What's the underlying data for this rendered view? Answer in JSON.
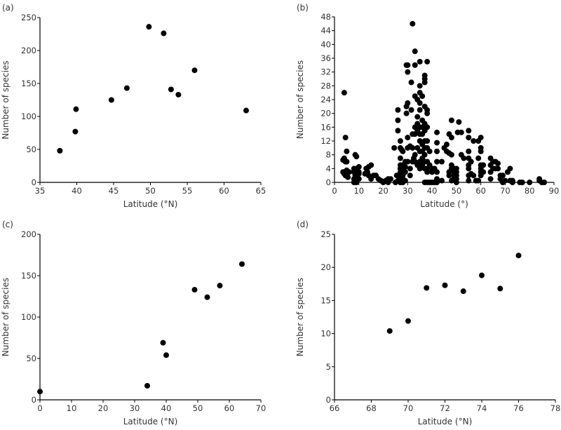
{
  "chart_data": [
    {
      "panel": "(a)",
      "type": "scatter",
      "xlabel": "Latitude (°N)",
      "ylabel": "Number of species",
      "xlim": [
        35,
        65
      ],
      "ylim": [
        0,
        250
      ],
      "xticks": [
        35,
        40,
        45,
        50,
        55,
        60,
        65
      ],
      "yticks": [
        0,
        50,
        100,
        150,
        200,
        250
      ],
      "grid": false,
      "points": [
        [
          37.7,
          48
        ],
        [
          39.8,
          77
        ],
        [
          39.9,
          111
        ],
        [
          44.7,
          125
        ],
        [
          46.8,
          143
        ],
        [
          49.8,
          236
        ],
        [
          51.8,
          226
        ],
        [
          52.8,
          141
        ],
        [
          53.8,
          133
        ],
        [
          56,
          170
        ],
        [
          63,
          109
        ]
      ]
    },
    {
      "panel": "(b)",
      "type": "scatter",
      "xlabel": "Latitude (°)",
      "ylabel": "Number of species",
      "xlim": [
        0,
        90
      ],
      "ylim": [
        0,
        48
      ],
      "xticks": [
        0,
        10,
        20,
        30,
        40,
        50,
        60,
        70,
        80,
        90
      ],
      "yticks": [
        0,
        4,
        8,
        12,
        16,
        20,
        24,
        28,
        32,
        36,
        40,
        44,
        48
      ],
      "grid": false,
      "points": [
        [
          4,
          26
        ],
        [
          4.5,
          13
        ],
        [
          5,
          9
        ],
        [
          4,
          7
        ],
        [
          3.5,
          6.5
        ],
        [
          4.5,
          6
        ],
        [
          5,
          6
        ],
        [
          3.5,
          3
        ],
        [
          4,
          3
        ],
        [
          5,
          3.5
        ],
        [
          5,
          2.5
        ],
        [
          4.5,
          2
        ],
        [
          5.5,
          1.5
        ],
        [
          4,
          2.5
        ],
        [
          6,
          3
        ],
        [
          8.5,
          8
        ],
        [
          9,
          7.5
        ],
        [
          8,
          4
        ],
        [
          9,
          4
        ],
        [
          10,
          4.5
        ],
        [
          8,
          3
        ],
        [
          9,
          3
        ],
        [
          10,
          3
        ],
        [
          8.5,
          2
        ],
        [
          9.5,
          2
        ],
        [
          10,
          2.5
        ],
        [
          8,
          1
        ],
        [
          9,
          0.5
        ],
        [
          10,
          1
        ],
        [
          8,
          0
        ],
        [
          9,
          0
        ],
        [
          13,
          4
        ],
        [
          14,
          4.5
        ],
        [
          15,
          5
        ],
        [
          12.5,
          2.5
        ],
        [
          13.5,
          3
        ],
        [
          14,
          2
        ],
        [
          15,
          1
        ],
        [
          16,
          2
        ],
        [
          17,
          2
        ],
        [
          15,
          1.5
        ],
        [
          18,
          1
        ],
        [
          19,
          0.5
        ],
        [
          20,
          0
        ],
        [
          21,
          0.5
        ],
        [
          22,
          1
        ],
        [
          23,
          1
        ],
        [
          20,
          0.2
        ],
        [
          22,
          0
        ],
        [
          24.5,
          10
        ],
        [
          26,
          21
        ],
        [
          26,
          18
        ],
        [
          26,
          15
        ],
        [
          25.5,
          2
        ],
        [
          25,
          0
        ],
        [
          26,
          0.5
        ],
        [
          27,
          10
        ],
        [
          27,
          12
        ],
        [
          27.5,
          9.5
        ],
        [
          28,
          9
        ],
        [
          27,
          7
        ],
        [
          27,
          5
        ],
        [
          28,
          5
        ],
        [
          27,
          4
        ],
        [
          28,
          4
        ],
        [
          27,
          3
        ],
        [
          28,
          3
        ],
        [
          27,
          2
        ],
        [
          28,
          2
        ],
        [
          27,
          1
        ],
        [
          28,
          1
        ],
        [
          27,
          0
        ],
        [
          28,
          0
        ],
        [
          29,
          0.5
        ],
        [
          29,
          3
        ],
        [
          29,
          4.5
        ],
        [
          29,
          6
        ],
        [
          30,
          6
        ],
        [
          29.5,
          22
        ],
        [
          30,
          23
        ],
        [
          29.5,
          20
        ],
        [
          29.5,
          34
        ],
        [
          30,
          32
        ],
        [
          30,
          34
        ],
        [
          30,
          13
        ],
        [
          30,
          10
        ],
        [
          31,
          10.5
        ],
        [
          31.5,
          29
        ],
        [
          31,
          2
        ],
        [
          31,
          4
        ],
        [
          32,
          46
        ],
        [
          31.5,
          21
        ],
        [
          32,
          14
        ],
        [
          32,
          10
        ],
        [
          32.5,
          7
        ],
        [
          32,
          6
        ],
        [
          33,
          38
        ],
        [
          33,
          34
        ],
        [
          33,
          25
        ],
        [
          33,
          16
        ],
        [
          33,
          14
        ],
        [
          33,
          8
        ],
        [
          33,
          6
        ],
        [
          34,
          19
        ],
        [
          34,
          17
        ],
        [
          34,
          15
        ],
        [
          34,
          10
        ],
        [
          34,
          5
        ],
        [
          34,
          24
        ],
        [
          35,
          35
        ],
        [
          35,
          28
        ],
        [
          35,
          26
        ],
        [
          35,
          23
        ],
        [
          35,
          21
        ],
        [
          35,
          16
        ],
        [
          35,
          14
        ],
        [
          35,
          12
        ],
        [
          35,
          9
        ],
        [
          35,
          6
        ],
        [
          35,
          4
        ],
        [
          36,
          25
        ],
        [
          36,
          18
        ],
        [
          36,
          16
        ],
        [
          36,
          14
        ],
        [
          36,
          11
        ],
        [
          36,
          9
        ],
        [
          36,
          7
        ],
        [
          36,
          5
        ],
        [
          37,
          31
        ],
        [
          37,
          30
        ],
        [
          37,
          29
        ],
        [
          37,
          22
        ],
        [
          37,
          17
        ],
        [
          37,
          15
        ],
        [
          37,
          12
        ],
        [
          37,
          10
        ],
        [
          37,
          8
        ],
        [
          37,
          6
        ],
        [
          37,
          4
        ],
        [
          37,
          0
        ],
        [
          38,
          35
        ],
        [
          38,
          21
        ],
        [
          38,
          20
        ],
        [
          38,
          16
        ],
        [
          38,
          12
        ],
        [
          38,
          10
        ],
        [
          38,
          6
        ],
        [
          38,
          4
        ],
        [
          38,
          3
        ],
        [
          38,
          0
        ],
        [
          39,
          0
        ],
        [
          39,
          9
        ],
        [
          39,
          5
        ],
        [
          40,
          4
        ],
        [
          40,
          3
        ],
        [
          40,
          0
        ],
        [
          41,
          4
        ],
        [
          41,
          0
        ],
        [
          42,
          14.5
        ],
        [
          42,
          11.5
        ],
        [
          42,
          9
        ],
        [
          42,
          6
        ],
        [
          42,
          3
        ],
        [
          42,
          1
        ],
        [
          42,
          0
        ],
        [
          44,
          6
        ],
        [
          44,
          0.5
        ],
        [
          45,
          10
        ],
        [
          46,
          11
        ],
        [
          46,
          9
        ],
        [
          47,
          8.5
        ],
        [
          47,
          14
        ],
        [
          48,
          13
        ],
        [
          48,
          18
        ],
        [
          48,
          8
        ],
        [
          47,
          2
        ],
        [
          47,
          3
        ],
        [
          48,
          4
        ],
        [
          48,
          5
        ],
        [
          49,
          4
        ],
        [
          49,
          3
        ],
        [
          49,
          2
        ],
        [
          49,
          1
        ],
        [
          48,
          0.5
        ],
        [
          50,
          4
        ],
        [
          50,
          3
        ],
        [
          50,
          2
        ],
        [
          50,
          0
        ],
        [
          50,
          1
        ],
        [
          51,
          17.5
        ],
        [
          50.5,
          14.5
        ],
        [
          52,
          14.5
        ],
        [
          52,
          8
        ],
        [
          53,
          7
        ],
        [
          55,
          15
        ],
        [
          55,
          13
        ],
        [
          55,
          9
        ],
        [
          55,
          7
        ],
        [
          55,
          5
        ],
        [
          55,
          4
        ],
        [
          55,
          2
        ],
        [
          55,
          0.5
        ],
        [
          56,
          2.5
        ],
        [
          56,
          6
        ],
        [
          57,
          12
        ],
        [
          57,
          2
        ],
        [
          58,
          0.5
        ],
        [
          59,
          0.5
        ],
        [
          59,
          7
        ],
        [
          59,
          12
        ],
        [
          60,
          13
        ],
        [
          60,
          10
        ],
        [
          60,
          9
        ],
        [
          60,
          5
        ],
        [
          60,
          4
        ],
        [
          60,
          3
        ],
        [
          60,
          2
        ],
        [
          61,
          5
        ],
        [
          61,
          3
        ],
        [
          64,
          7
        ],
        [
          64,
          5
        ],
        [
          64,
          3
        ],
        [
          64,
          1
        ],
        [
          65,
          6
        ],
        [
          65,
          4
        ],
        [
          66,
          4
        ],
        [
          66,
          6
        ],
        [
          67,
          5.5
        ],
        [
          67,
          4
        ],
        [
          68,
          2
        ],
        [
          68,
          1
        ],
        [
          69,
          2
        ],
        [
          69,
          0
        ],
        [
          70,
          0.5
        ],
        [
          71,
          3
        ],
        [
          72,
          4
        ],
        [
          72,
          0.5
        ],
        [
          73,
          0.5
        ],
        [
          73,
          0
        ],
        [
          76,
          0
        ],
        [
          77,
          0
        ],
        [
          80,
          0
        ],
        [
          84,
          1
        ],
        [
          84,
          0.5
        ],
        [
          85,
          0
        ],
        [
          86,
          0
        ]
      ]
    },
    {
      "panel": "(c)",
      "type": "scatter",
      "xlabel": "Latitude (°N)",
      "ylabel": "Number of species",
      "xlim": [
        0,
        70
      ],
      "ylim": [
        0,
        200
      ],
      "xticks": [
        0,
        10,
        20,
        30,
        40,
        50,
        60,
        70
      ],
      "yticks": [
        0,
        50,
        100,
        150,
        200
      ],
      "grid": false,
      "points": [
        [
          0,
          10
        ],
        [
          34,
          17
        ],
        [
          39,
          69
        ],
        [
          40,
          54
        ],
        [
          49,
          133
        ],
        [
          53,
          124
        ],
        [
          57,
          138
        ],
        [
          64,
          164
        ]
      ]
    },
    {
      "panel": "(d)",
      "type": "scatter",
      "xlabel": "Latitude (°N)",
      "ylabel": "Number of species",
      "xlim": [
        66,
        78
      ],
      "ylim": [
        0,
        25
      ],
      "xticks": [
        66,
        68,
        70,
        72,
        74,
        76,
        78
      ],
      "yticks": [
        0,
        5,
        10,
        15,
        20,
        25
      ],
      "grid": false,
      "points": [
        [
          69,
          10.4
        ],
        [
          70,
          11.9
        ],
        [
          71,
          16.9
        ],
        [
          72,
          17.3
        ],
        [
          73,
          16.4
        ],
        [
          74,
          18.8
        ],
        [
          75,
          16.8
        ],
        [
          76,
          21.8
        ]
      ]
    }
  ],
  "colors": {
    "marker": "#000000",
    "axis": "#000000",
    "text": "#333333"
  }
}
